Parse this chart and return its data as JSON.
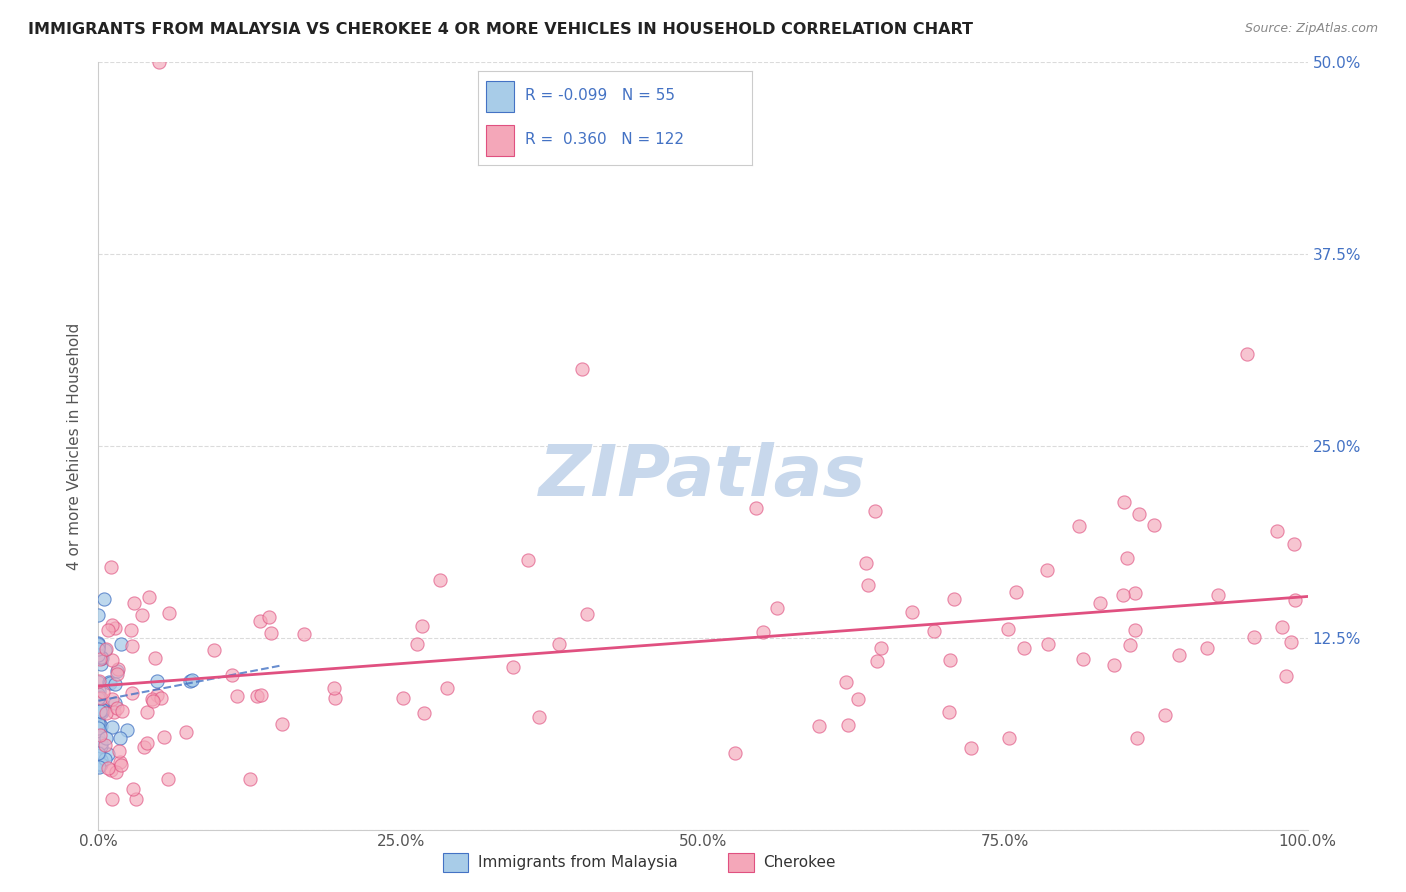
{
  "title": "IMMIGRANTS FROM MALAYSIA VS CHEROKEE 4 OR MORE VEHICLES IN HOUSEHOLD CORRELATION CHART",
  "source": "Source: ZipAtlas.com",
  "xlabel_blue": "Immigrants from Malaysia",
  "xlabel_pink": "Cherokee",
  "ylabel": "4 or more Vehicles in Household",
  "xlim": [
    0,
    100
  ],
  "ylim": [
    0,
    50
  ],
  "xticks": [
    0,
    25,
    50,
    75,
    100
  ],
  "yticks": [
    0,
    12.5,
    25,
    37.5,
    50
  ],
  "xtick_labels": [
    "0.0%",
    "25.0%",
    "50.0%",
    "75.0%",
    "100.0%"
  ],
  "ytick_labels": [
    "",
    "12.5%",
    "25.0%",
    "37.5%",
    "50.0%"
  ],
  "legend_R_blue": "-0.099",
  "legend_N_blue": "55",
  "legend_R_pink": "0.360",
  "legend_N_pink": "122",
  "blue_color": "#a8cce8",
  "blue_edge_color": "#4472c4",
  "pink_color": "#f4a7b9",
  "pink_edge_color": "#e05080",
  "trend_blue_color": "#4472c4",
  "trend_pink_color": "#e05080",
  "watermark": "ZIPatlas",
  "watermark_color": "#c8d8ec",
  "grid_color": "#cccccc",
  "title_color": "#222222",
  "axis_label_color": "#555555",
  "tick_label_color": "#4472c4",
  "right_tick_color": "#4472c4",
  "source_color": "#888888"
}
